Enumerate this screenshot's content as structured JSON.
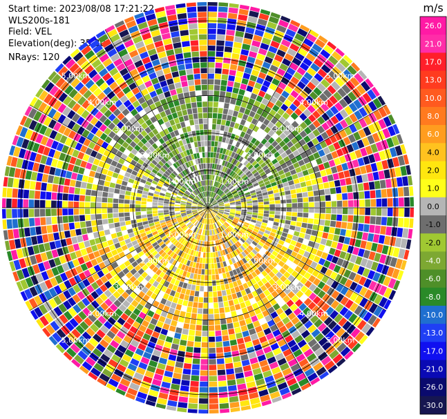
{
  "header": {
    "start_time": "Start time: 2023/08/08 17:21:22",
    "instrument": "WLS200s-181",
    "field": "Field: VEL",
    "elevation": "Elevation(deg): 35.30",
    "nrays": "NRays: 120"
  },
  "chart_data": {
    "type": "ppi",
    "field": "VEL",
    "unit": "m/s",
    "nrays": 120,
    "elevation_deg": 35.3,
    "range_rings_km": [
      1.0,
      2.0,
      3.0,
      4.0,
      5.0
    ],
    "ring_labels": [
      "1.00km",
      "2.00km",
      "3.00km",
      "4.00km",
      "5.00km"
    ],
    "colorbar": {
      "title": "m/s",
      "tick_labels": [
        "26.0",
        "21.0",
        "17.0",
        "13.0",
        "10.0",
        "8.0",
        "6.0",
        "4.0",
        "2.0",
        "1.0",
        "0.0",
        "-1.0",
        "-2.0",
        "-4.0",
        "-6.0",
        "-8.0",
        "-10.0",
        "-13.0",
        "-17.0",
        "-21.0",
        "-26.0",
        "-30.0"
      ],
      "colors": [
        "#ff1aa5",
        "#ff2da8",
        "#ff1f2a",
        "#ff3b1f",
        "#ff5a1f",
        "#ff7a1f",
        "#ff9d1f",
        "#ffc21f",
        "#ffe60f",
        "#ffff1a",
        "#b5b5b5",
        "#6e6e6e",
        "#a0c832",
        "#7da832",
        "#4e8f28",
        "#2a8a28",
        "#1f6fd0",
        "#1f3ff5",
        "#1010f0",
        "#0a0ab4",
        "#0a0a6e",
        "#161651"
      ]
    }
  }
}
